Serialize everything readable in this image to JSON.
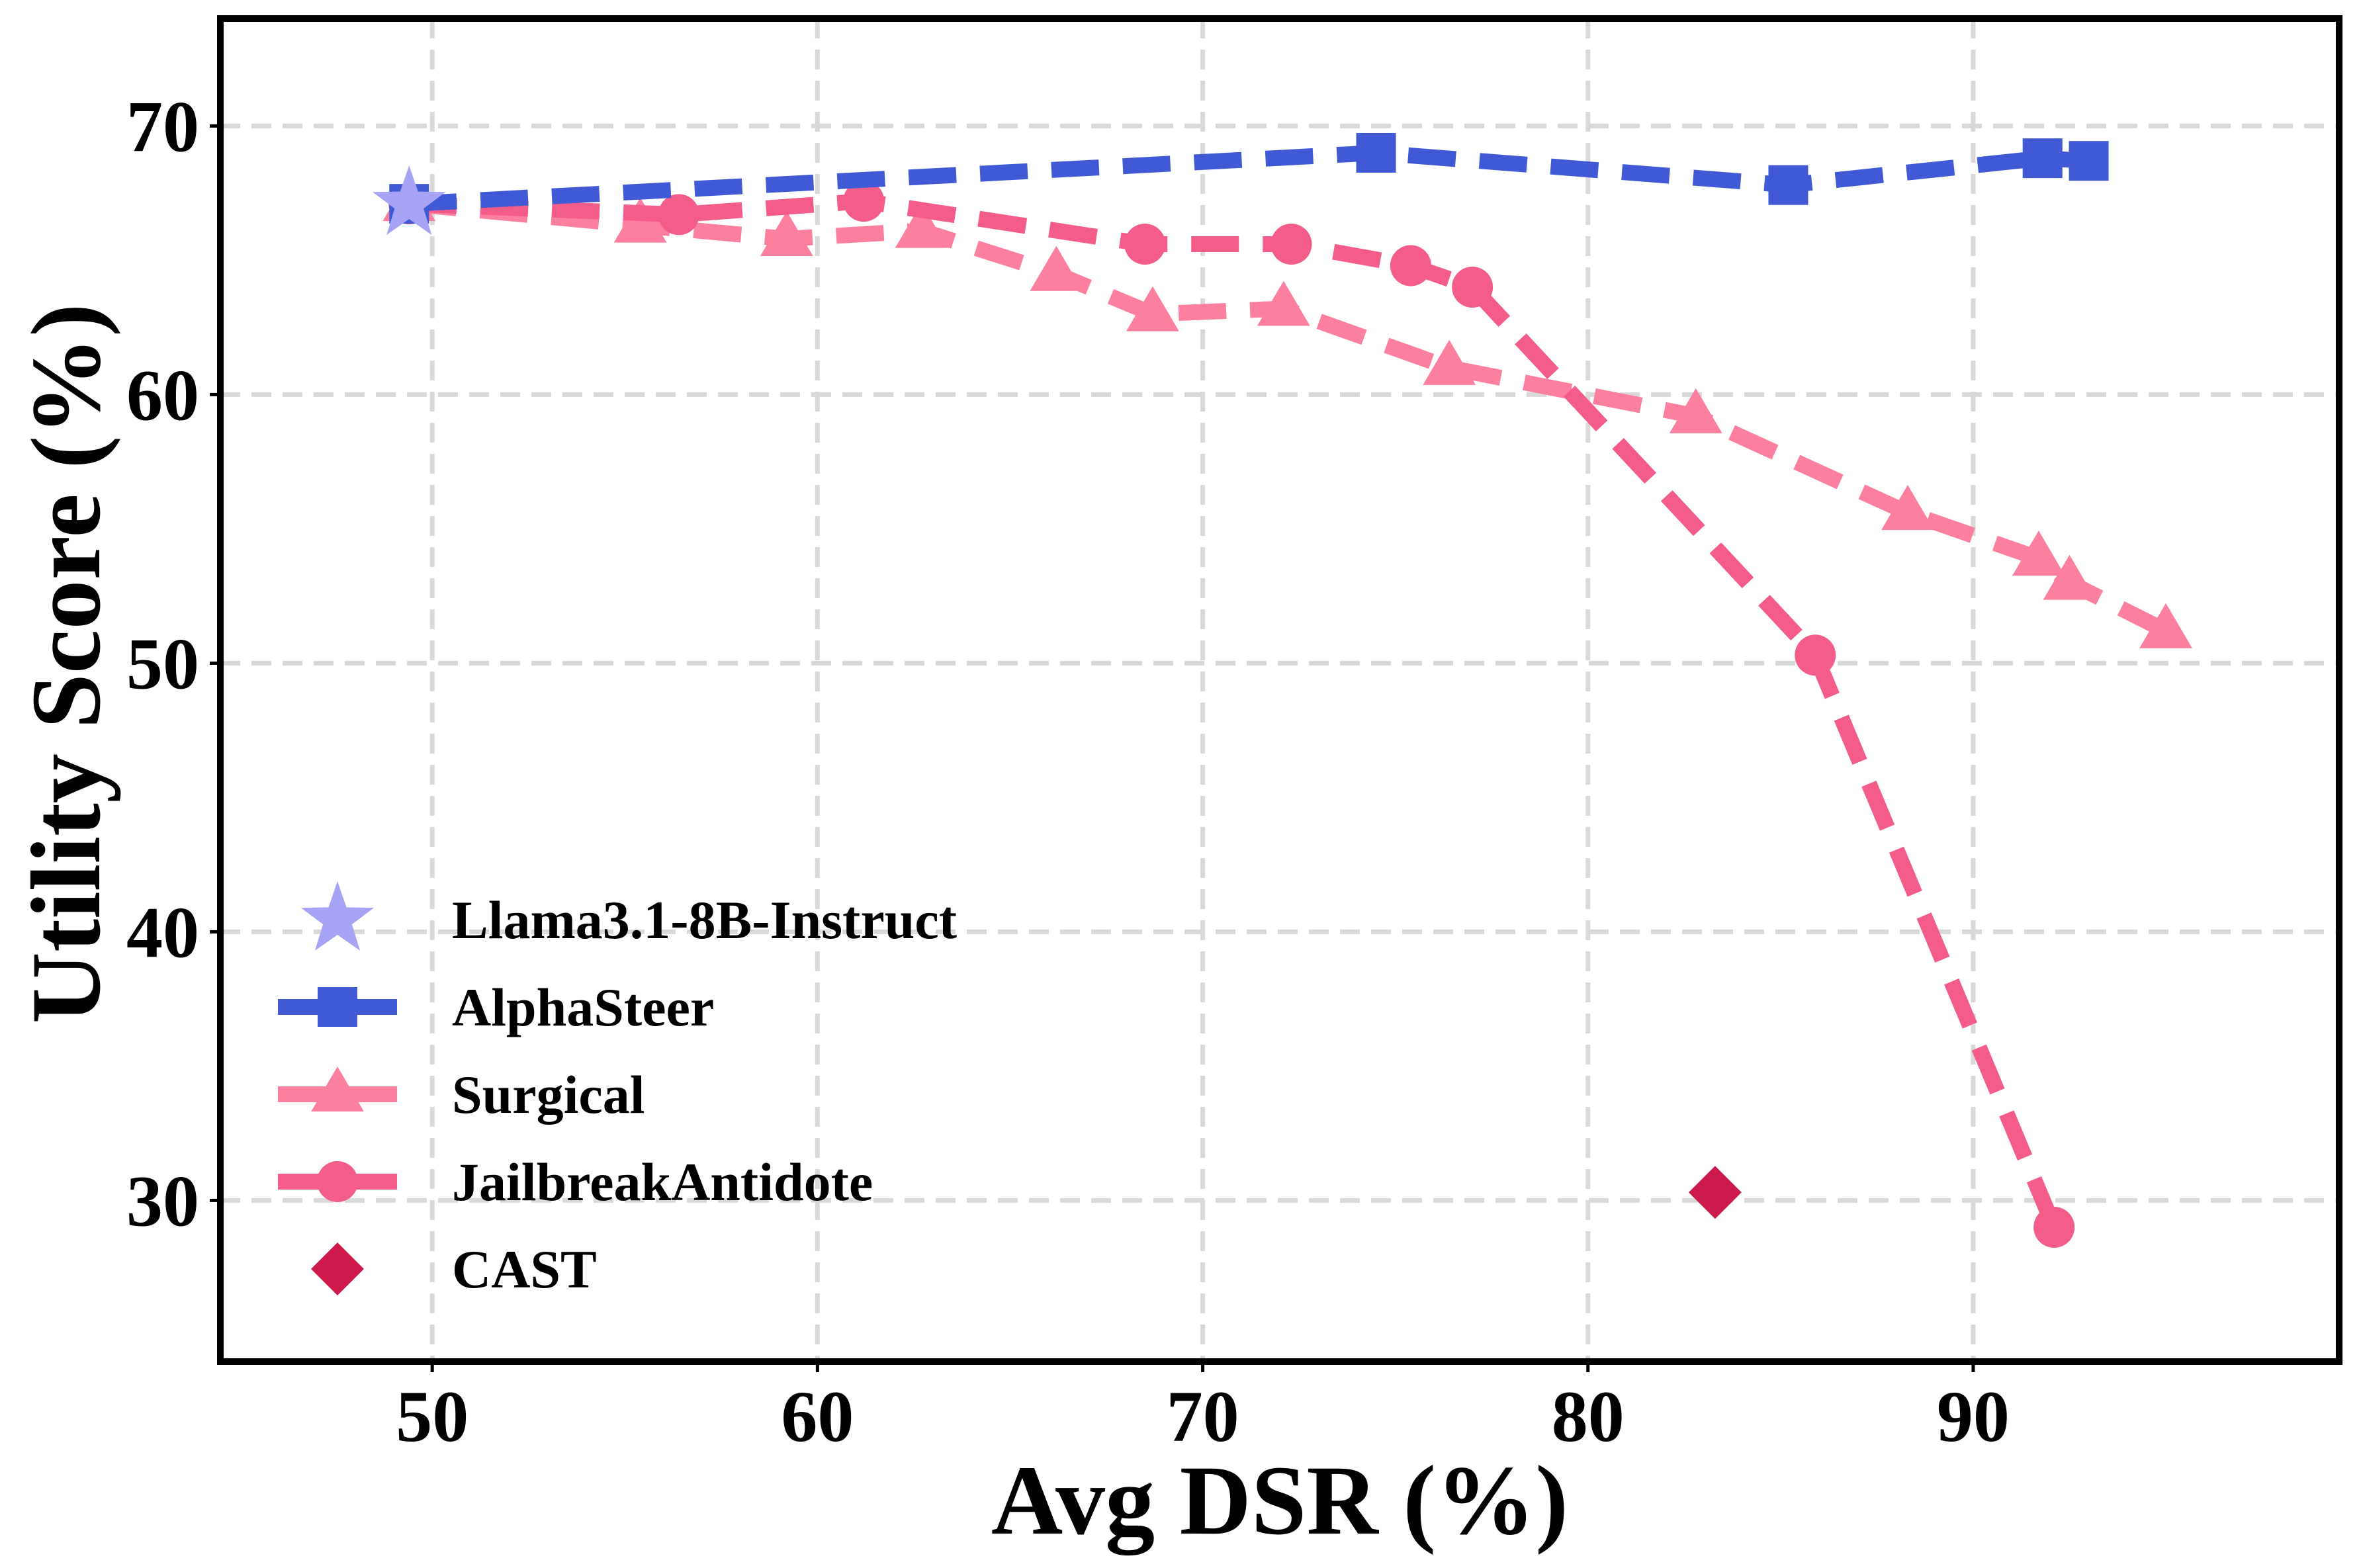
{
  "chart_data": {
    "type": "line",
    "xlabel": "Avg DSR (%)",
    "ylabel": "Utility Score (%)",
    "xlim": [
      44.5,
      99.5
    ],
    "ylim": [
      24.0,
      74.0
    ],
    "x_ticks": [
      50,
      60,
      70,
      80,
      90
    ],
    "y_ticks": [
      30,
      40,
      50,
      60,
      70
    ],
    "grid": true,
    "legend_position": "lower-left",
    "series": [
      {
        "name": "Llama3.1-8B-Instruct",
        "marker": "star",
        "color": "#a7a4f5",
        "line": false,
        "points": [
          [
            49.4,
            67.1
          ]
        ]
      },
      {
        "name": "AlphaSteer",
        "marker": "square",
        "color": "#3f5ad4",
        "line": true,
        "points": [
          [
            49.4,
            67.1
          ],
          [
            74.5,
            69.0
          ],
          [
            85.2,
            67.8
          ],
          [
            91.8,
            68.8
          ],
          [
            93.0,
            68.7
          ]
        ]
      },
      {
        "name": "Surgical",
        "marker": "triangle",
        "color": "#fc7fa0",
        "line": true,
        "points": [
          [
            49.4,
            67.1
          ],
          [
            55.4,
            66.3
          ],
          [
            59.2,
            65.8
          ],
          [
            62.7,
            66.1
          ],
          [
            66.2,
            64.5
          ],
          [
            68.7,
            63.0
          ],
          [
            72.1,
            63.2
          ],
          [
            76.4,
            61.0
          ],
          [
            82.8,
            59.2
          ],
          [
            88.3,
            55.6
          ],
          [
            91.7,
            53.9
          ],
          [
            92.5,
            53.0
          ],
          [
            95.0,
            51.2
          ]
        ]
      },
      {
        "name": "JailbreakAntidote",
        "marker": "circle",
        "color": "#f45c8a",
        "line": true,
        "points": [
          [
            49.4,
            67.1
          ],
          [
            56.4,
            66.7
          ],
          [
            61.2,
            67.2
          ],
          [
            68.5,
            65.6
          ],
          [
            72.3,
            65.6
          ],
          [
            75.4,
            64.8
          ],
          [
            77.0,
            64.0
          ],
          [
            85.9,
            50.3
          ],
          [
            92.1,
            29.0
          ]
        ]
      },
      {
        "name": "CAST",
        "marker": "diamond",
        "color": "#cc1a4d",
        "line": false,
        "points": [
          [
            83.3,
            30.3
          ]
        ]
      }
    ]
  }
}
